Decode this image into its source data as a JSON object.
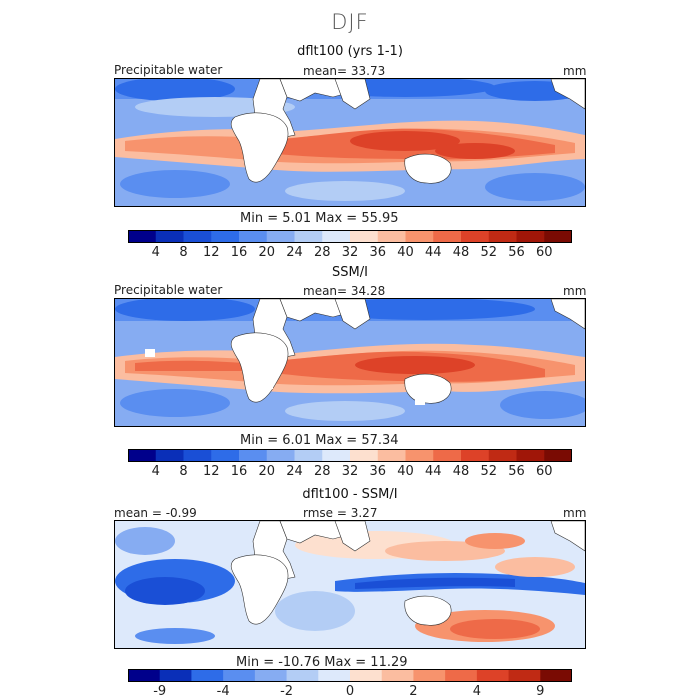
{
  "figure_title": "DJF",
  "panels": [
    {
      "title": "dflt100 (yrs 1-1)",
      "left_label": "Precipitable water",
      "center_label": "mean=  33.73",
      "units": "mm",
      "min_max": "Min =   5.01  Max =  55.95",
      "colorbar_labels": [
        "4",
        "8",
        "12",
        "16",
        "20",
        "24",
        "28",
        "32",
        "36",
        "40",
        "44",
        "48",
        "52",
        "56",
        "60"
      ],
      "colorbar_colors": [
        "#00008b",
        "#0a2fb8",
        "#1a4fd6",
        "#2e6ce8",
        "#5a8ef0",
        "#86acf2",
        "#b3cdf5",
        "#dde9fb",
        "#fde0cf",
        "#fbbda0",
        "#f7936d",
        "#ee6a48",
        "#dd4228",
        "#c02a14",
        "#a01608",
        "#7a0b03"
      ]
    },
    {
      "title": "SSM/I",
      "left_label": "Precipitable water",
      "center_label": "mean=  34.28",
      "units": "mm",
      "min_max": "Min =   6.01  Max =  57.34",
      "colorbar_labels": [
        "4",
        "8",
        "12",
        "16",
        "20",
        "24",
        "28",
        "32",
        "36",
        "40",
        "44",
        "48",
        "52",
        "56",
        "60"
      ],
      "colorbar_colors": [
        "#00008b",
        "#0a2fb8",
        "#1a4fd6",
        "#2e6ce8",
        "#5a8ef0",
        "#86acf2",
        "#b3cdf5",
        "#dde9fb",
        "#fde0cf",
        "#fbbda0",
        "#f7936d",
        "#ee6a48",
        "#dd4228",
        "#c02a14",
        "#a01608",
        "#7a0b03"
      ]
    },
    {
      "title": "dflt100 - SSM/I",
      "left_label": "mean =  -0.99",
      "center_label": "rmse =   3.27",
      "units": "mm",
      "min_max": "Min = -10.76  Max =  11.29",
      "colorbar_labels": [
        "-9",
        "-4",
        "-2",
        "0",
        "2",
        "4",
        "9"
      ],
      "colorbar_colors": [
        "#00008b",
        "#0a2fb8",
        "#2e6ce8",
        "#5a8ef0",
        "#86acf2",
        "#b3cdf5",
        "#dde9fb",
        "#fde0cf",
        "#fbbda0",
        "#f7936d",
        "#ee6a48",
        "#dd4228",
        "#c02a14",
        "#7a0b03"
      ]
    }
  ],
  "chart_data": [
    {
      "type": "heatmap",
      "title": "dflt100 (yrs 1-1)",
      "variable": "Precipitable water",
      "units": "mm",
      "mean": 33.73,
      "min": 5.01,
      "max": 55.95,
      "color_levels": [
        4,
        8,
        12,
        16,
        20,
        24,
        28,
        32,
        36,
        40,
        44,
        48,
        52,
        56,
        60
      ]
    },
    {
      "type": "heatmap",
      "title": "SSM/I",
      "variable": "Precipitable water",
      "units": "mm",
      "mean": 34.28,
      "min": 6.01,
      "max": 57.34,
      "color_levels": [
        4,
        8,
        12,
        16,
        20,
        24,
        28,
        32,
        36,
        40,
        44,
        48,
        52,
        56,
        60
      ]
    },
    {
      "type": "heatmap",
      "title": "dflt100 - SSM/I",
      "units": "mm",
      "mean": -0.99,
      "rmse": 3.27,
      "min": -10.76,
      "max": 11.29,
      "color_levels": [
        -9,
        -4,
        -2,
        0,
        2,
        4,
        9
      ]
    }
  ]
}
